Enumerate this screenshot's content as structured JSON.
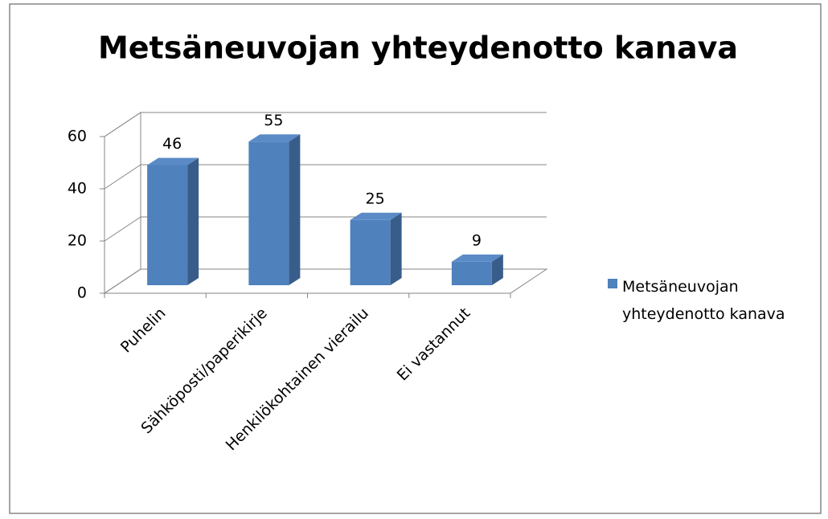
{
  "chart_data": {
    "type": "bar",
    "title": "Metsäneuvojan yhteydenotto kanava",
    "categories": [
      "Puhelin",
      "Sähköposti/paperikirje",
      "Henkilökohtainen vierailu",
      "Ei vastannut"
    ],
    "series": [
      {
        "name": "Metsäneuvojan yhteydenotto kanava",
        "color": "#4f81bd",
        "values": [
          46,
          55,
          25,
          9
        ]
      }
    ],
    "ylim": [
      0,
      60
    ],
    "yticks": [
      0,
      20,
      40,
      60
    ],
    "grid": true,
    "legend": "right"
  }
}
